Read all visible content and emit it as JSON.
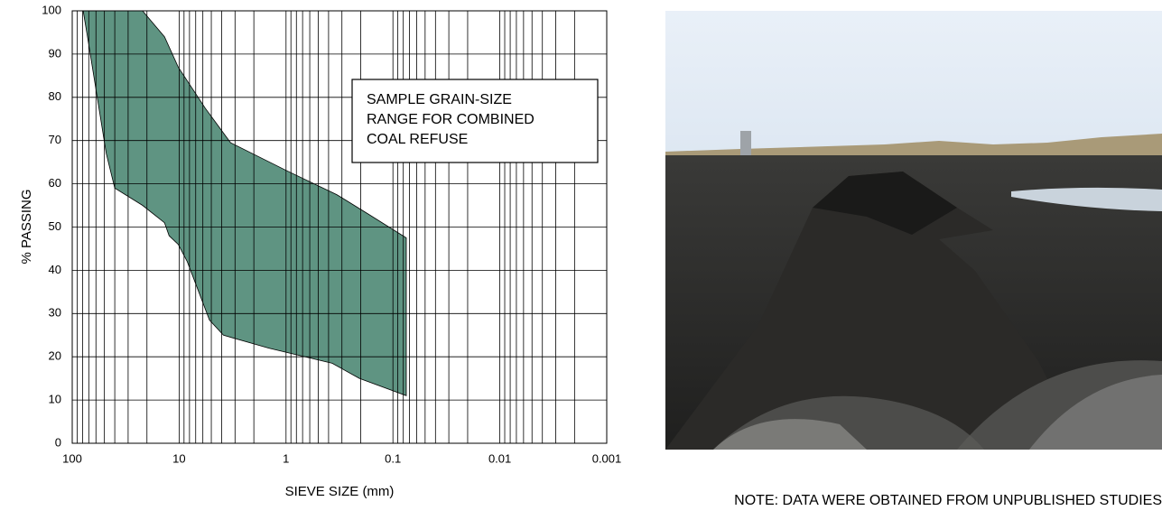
{
  "chart_data": {
    "type": "band",
    "ylabel": "% PASSING",
    "xlabel": "SIEVE SIZE (mm)",
    "annotation": [
      "SAMPLE GRAIN-SIZE",
      "RANGE FOR COMBINED",
      "COAL REFUSE"
    ],
    "xlog": true,
    "grid": true,
    "fill": "#5f9482",
    "xlim": [
      100,
      0.001
    ],
    "ylim": [
      0,
      100
    ],
    "xticks": [
      100,
      10,
      1,
      0.1,
      0.01,
      0.001
    ],
    "x_minor_ticks": [
      90,
      80,
      70,
      60,
      50,
      40,
      30,
      20,
      9,
      8,
      7,
      6,
      5,
      4,
      3,
      2,
      0.9,
      0.8,
      0.7,
      0.6,
      0.5,
      0.4,
      0.3,
      0.2,
      0.09,
      0.08,
      0.07,
      0.06,
      0.05,
      0.04,
      0.03,
      0.02,
      0.009,
      0.008,
      0.007,
      0.006,
      0.005,
      0.004,
      0.003,
      0.002
    ],
    "yticks": [
      0,
      10,
      20,
      30,
      40,
      50,
      60,
      70,
      80,
      90,
      100
    ],
    "series": [
      {
        "x": [
          79,
          22,
          13.7,
          10.2,
          5.7,
          3.3,
          0.98,
          0.335,
          0.17,
          0.075
        ],
        "values": [
          100,
          100,
          94,
          87,
          77.5,
          69.5,
          63,
          57.5,
          53,
          47.5
        ]
      },
      {
        "x": [
          0.075,
          0.206,
          0.37,
          1.45,
          3.85,
          5.2,
          8.4,
          10.2,
          12.4,
          13.7,
          22,
          40,
          48,
          72
        ],
        "values": [
          11,
          15,
          18.5,
          22,
          25,
          28.5,
          42,
          46,
          48,
          51,
          55,
          59,
          67,
          94
        ]
      }
    ]
  },
  "note": "NOTE:  DATA WERE OBTAINED FROM UNPUBLISHED STUDIES"
}
